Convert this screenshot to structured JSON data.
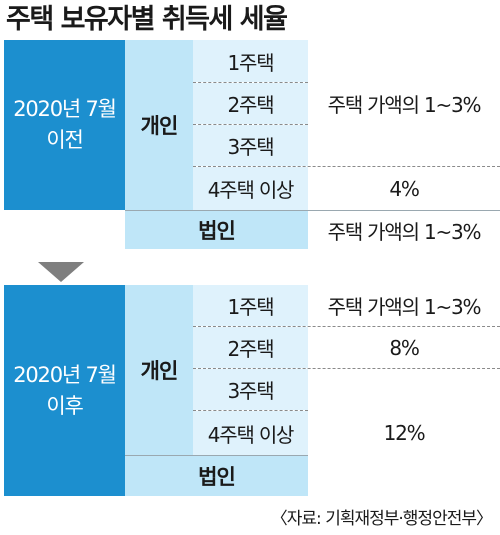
{
  "title": "주택 보유자별 취득세 세율",
  "sections": [
    {
      "period": "2020년 7월\n이전",
      "individual_label": "개인",
      "corporate_label": "법인",
      "houses": [
        "1주택",
        "2주택",
        "3주택",
        "4주택 이상"
      ],
      "individual_rates": [
        "주택 가액의 1~3%",
        "4%"
      ],
      "corporate_rate": "주택 가액의 1~3%"
    },
    {
      "period": "2020년 7월\n이후",
      "individual_label": "개인",
      "corporate_label": "법인",
      "houses": [
        "1주택",
        "2주택",
        "3주택",
        "4주택 이상"
      ],
      "individual_rates": [
        "주택 가액의 1~3%",
        "8%",
        "12%"
      ],
      "corporate_rate": ""
    }
  ],
  "source": "〈자료: 기획재정부·행정안전부〉",
  "colors": {
    "period_bg": "#1c8fcf",
    "group_bg": "#bfe6f8",
    "house_bg": "#dff2fc",
    "arrow": "#7f7f7f"
  },
  "icons": {
    "arrow": "down-arrow-icon"
  }
}
